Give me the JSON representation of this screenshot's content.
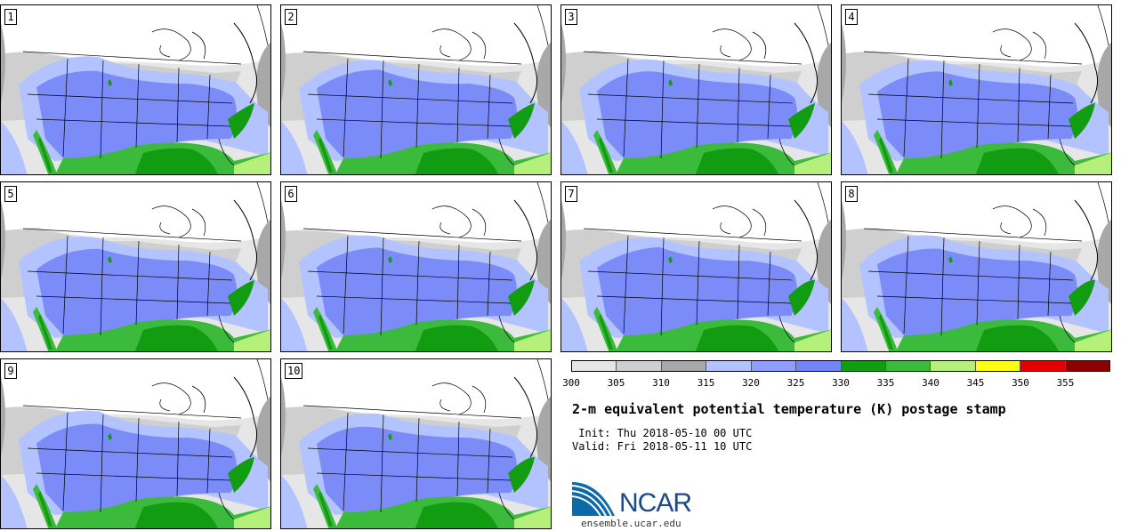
{
  "panels": [
    {
      "number": "1"
    },
    {
      "number": "2"
    },
    {
      "number": "3"
    },
    {
      "number": "4"
    },
    {
      "number": "5"
    },
    {
      "number": "6"
    },
    {
      "number": "7"
    },
    {
      "number": "8"
    },
    {
      "number": "9"
    },
    {
      "number": "10"
    }
  ],
  "colorbar": {
    "colors": [
      "#e6e6e6",
      "#cfcfcf",
      "#a8a8a8",
      "#b3c3ff",
      "#8c9eff",
      "#7384f7",
      "#119c11",
      "#3cba3c",
      "#b4f07a",
      "#ffff14",
      "#e30000",
      "#8b0000"
    ],
    "ticks": [
      "300",
      "305",
      "310",
      "315",
      "320",
      "325",
      "330",
      "335",
      "340",
      "345",
      "350",
      "355"
    ]
  },
  "title": "2-m equivalent potential temperature (K) postage stamp",
  "init": " Init: Thu 2018-05-10 00 UTC",
  "valid": "Valid: Fri 2018-05-11 10 UTC",
  "logo": {
    "name": "NCAR",
    "url": "ensemble.ucar.edu"
  },
  "map_colors": {
    "land_cold": "#ffffff",
    "light_gray": "#e6e6e6",
    "mid_gray": "#cfcfcf",
    "dark_gray": "#a8a8a8",
    "light_blue": "#b3c3ff",
    "blue": "#7b8cf8",
    "dark_green": "#119c11",
    "green": "#3cba3c",
    "light_green": "#b4f07a"
  }
}
